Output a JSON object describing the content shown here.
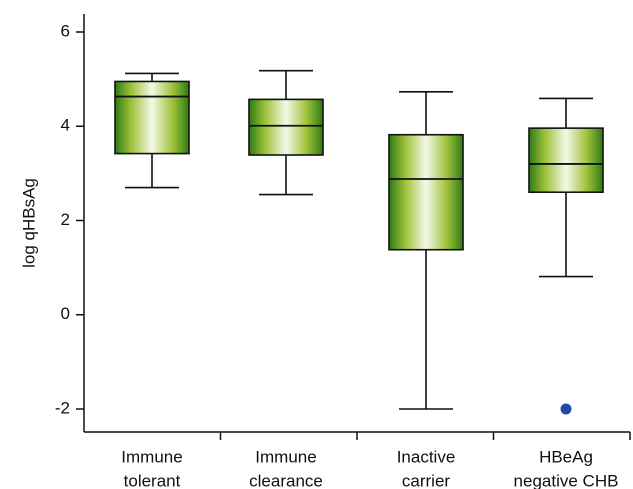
{
  "chart_data": {
    "type": "box",
    "ylabel": "log qHBsAg",
    "ylim": [
      -2.5,
      6.5
    ],
    "yticks": [
      -2,
      0,
      2,
      4,
      6
    ],
    "ytick_labels": [
      "-2",
      "0",
      "2",
      "4",
      "6"
    ],
    "categories": [
      [
        "Immune",
        "tolerant"
      ],
      [
        "Immune",
        "clearance"
      ],
      [
        "Inactive",
        "carrier"
      ],
      [
        "HBeAg",
        "negative CHB"
      ]
    ],
    "boxes": [
      {
        "whisker_low": 2.7,
        "q1": 3.42,
        "median": 4.63,
        "q3": 4.95,
        "whisker_high": 5.12
      },
      {
        "whisker_low": 2.55,
        "q1": 3.39,
        "median": 4.01,
        "q3": 4.57,
        "whisker_high": 5.18
      },
      {
        "whisker_low": -2.0,
        "q1": 1.38,
        "median": 2.88,
        "q3": 3.82,
        "whisker_high": 4.73
      },
      {
        "whisker_low": 0.81,
        "q1": 2.6,
        "median": 3.2,
        "q3": 3.96,
        "whisker_high": 4.59
      }
    ],
    "outliers": [
      {
        "category_index": 3,
        "value": -2.0
      }
    ],
    "colors": {
      "box_dark": "#2e7a14",
      "box_mid": "#9fc23a",
      "box_light": "#f4f8e8",
      "outlier": "#2448a8",
      "axis": "#111111"
    },
    "grid": false
  }
}
